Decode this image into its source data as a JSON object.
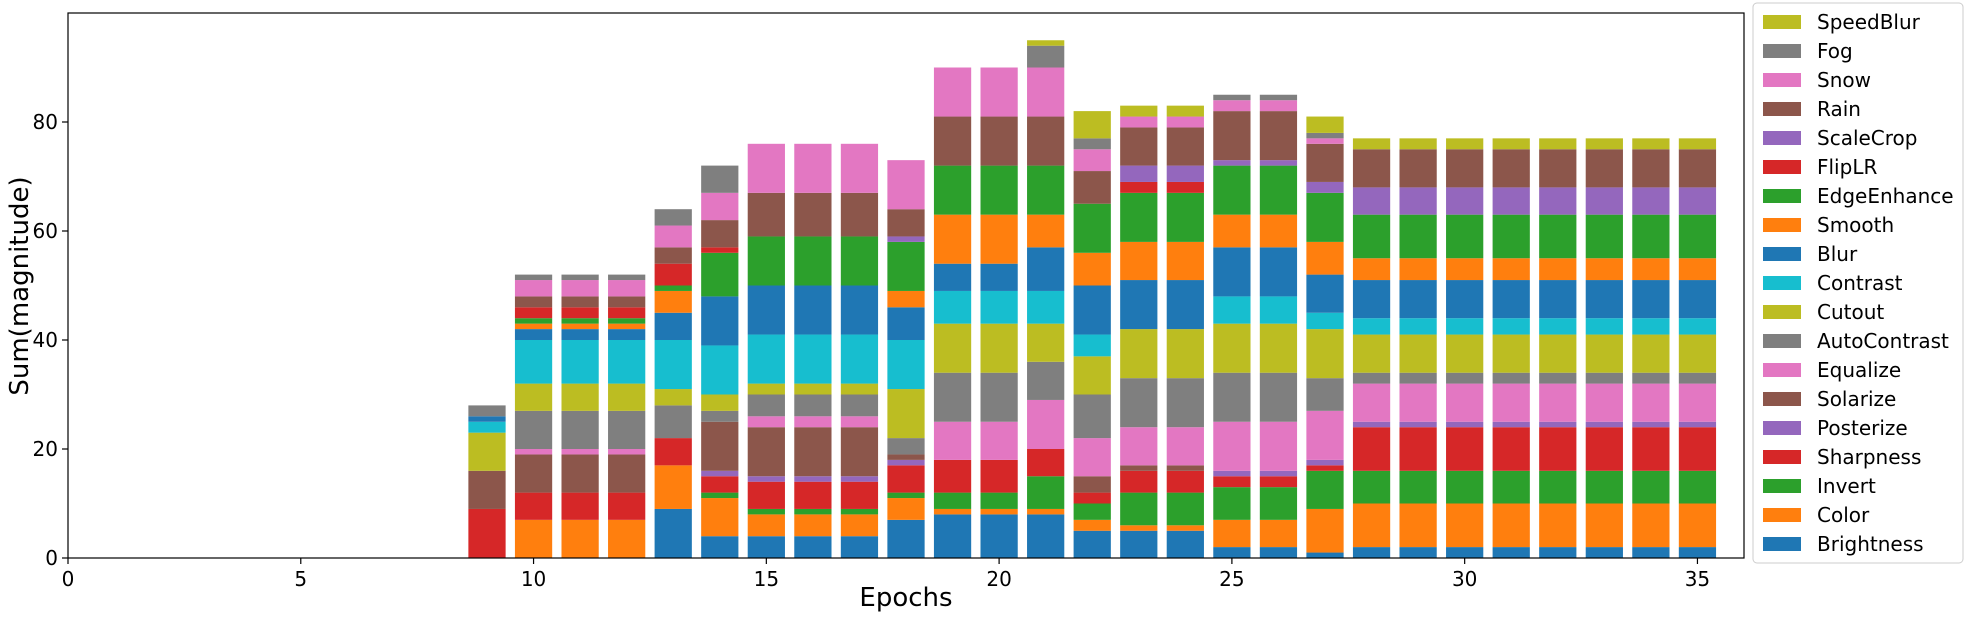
{
  "chart_data": {
    "type": "bar",
    "stacked": true,
    "title": "",
    "xlabel": "Epochs",
    "ylabel": "Sum(magnitude)",
    "xlim": [
      0,
      36
    ],
    "ylim": [
      0,
      100
    ],
    "xticks": [
      0,
      5,
      10,
      15,
      20,
      25,
      30,
      35
    ],
    "yticks": [
      0,
      20,
      40,
      60,
      80
    ],
    "grid": false,
    "legend_position": "outside-right",
    "x": [
      9,
      10,
      11,
      12,
      13,
      14,
      15,
      16,
      17,
      18,
      19,
      20,
      21,
      22,
      23,
      24,
      25,
      26,
      27,
      28,
      29,
      30,
      31,
      32,
      33,
      34,
      35
    ],
    "series": [
      {
        "name": "Brightness",
        "color": "#1f77b4",
        "values": [
          0,
          0,
          0,
          0,
          9,
          4,
          4,
          4,
          4,
          7,
          8,
          8,
          8,
          5,
          5,
          5,
          2,
          2,
          1,
          2,
          2,
          2,
          2,
          2,
          2,
          2,
          2
        ]
      },
      {
        "name": "Color",
        "color": "#ff7f0e",
        "values": [
          0,
          7,
          7,
          7,
          8,
          7,
          4,
          4,
          4,
          4,
          1,
          1,
          1,
          2,
          1,
          1,
          5,
          5,
          8,
          8,
          8,
          8,
          8,
          8,
          8,
          8,
          8
        ]
      },
      {
        "name": "Invert",
        "color": "#2ca02c",
        "values": [
          0,
          0,
          0,
          0,
          0,
          1,
          1,
          1,
          1,
          1,
          3,
          3,
          6,
          3,
          6,
          6,
          6,
          6,
          7,
          6,
          6,
          6,
          6,
          6,
          6,
          6,
          6
        ]
      },
      {
        "name": "Sharpness",
        "color": "#d62728",
        "values": [
          9,
          5,
          5,
          5,
          5,
          3,
          5,
          5,
          5,
          5,
          6,
          6,
          5,
          2,
          4,
          4,
          2,
          2,
          1,
          8,
          8,
          8,
          8,
          8,
          8,
          8,
          8
        ]
      },
      {
        "name": "Posterize",
        "color": "#9467bd",
        "values": [
          0,
          0,
          0,
          0,
          0,
          1,
          1,
          1,
          1,
          1,
          0,
          0,
          0,
          0,
          0,
          0,
          1,
          1,
          1,
          1,
          1,
          1,
          1,
          1,
          1,
          1,
          1
        ]
      },
      {
        "name": "Solarize",
        "color": "#8c564b",
        "values": [
          7,
          7,
          7,
          7,
          0,
          9,
          9,
          9,
          9,
          1,
          0,
          0,
          0,
          3,
          1,
          1,
          0,
          0,
          0,
          0,
          0,
          0,
          0,
          0,
          0,
          0,
          0
        ]
      },
      {
        "name": "Equalize",
        "color": "#e377c2",
        "values": [
          0,
          1,
          1,
          1,
          0,
          0,
          2,
          2,
          2,
          0,
          7,
          7,
          9,
          7,
          7,
          7,
          9,
          9,
          9,
          7,
          7,
          7,
          7,
          7,
          7,
          7,
          7
        ]
      },
      {
        "name": "AutoContrast",
        "color": "#7f7f7f",
        "values": [
          0,
          7,
          7,
          7,
          6,
          2,
          4,
          4,
          4,
          3,
          9,
          9,
          7,
          8,
          9,
          9,
          9,
          9,
          6,
          2,
          2,
          2,
          2,
          2,
          2,
          2,
          2
        ]
      },
      {
        "name": "Cutout",
        "color": "#bcbd22",
        "values": [
          7,
          5,
          5,
          5,
          3,
          3,
          2,
          2,
          2,
          9,
          9,
          9,
          7,
          7,
          9,
          9,
          9,
          9,
          9,
          7,
          7,
          7,
          7,
          7,
          7,
          7,
          7
        ]
      },
      {
        "name": "Contrast",
        "color": "#17becf",
        "values": [
          2,
          8,
          8,
          8,
          9,
          9,
          9,
          9,
          9,
          9,
          6,
          6,
          6,
          4,
          0,
          0,
          5,
          5,
          3,
          3,
          3,
          3,
          3,
          3,
          3,
          3,
          3
        ]
      },
      {
        "name": "Blur",
        "color": "#1f77b4",
        "values": [
          1,
          2,
          2,
          2,
          5,
          9,
          9,
          9,
          9,
          6,
          5,
          5,
          8,
          9,
          9,
          9,
          9,
          9,
          7,
          7,
          7,
          7,
          7,
          7,
          7,
          7,
          7
        ]
      },
      {
        "name": "Smooth",
        "color": "#ff7f0e",
        "values": [
          0,
          1,
          1,
          1,
          4,
          0,
          0,
          0,
          0,
          3,
          9,
          9,
          6,
          6,
          7,
          7,
          6,
          6,
          6,
          4,
          4,
          4,
          4,
          4,
          4,
          4,
          4
        ]
      },
      {
        "name": "EdgeEnhance",
        "color": "#2ca02c",
        "values": [
          0,
          1,
          1,
          1,
          1,
          8,
          9,
          9,
          9,
          9,
          9,
          9,
          9,
          9,
          9,
          9,
          9,
          9,
          9,
          8,
          8,
          8,
          8,
          8,
          8,
          8,
          8
        ]
      },
      {
        "name": "FlipLR",
        "color": "#d62728",
        "values": [
          0,
          2,
          2,
          2,
          4,
          1,
          0,
          0,
          0,
          0,
          0,
          0,
          0,
          0,
          2,
          2,
          0,
          0,
          0,
          0,
          0,
          0,
          0,
          0,
          0,
          0,
          0
        ]
      },
      {
        "name": "ScaleCrop",
        "color": "#9467bd",
        "values": [
          0,
          0,
          0,
          0,
          0,
          0,
          0,
          0,
          0,
          1,
          0,
          0,
          0,
          0,
          3,
          3,
          1,
          1,
          2,
          5,
          5,
          5,
          5,
          5,
          5,
          5,
          5
        ]
      },
      {
        "name": "Rain",
        "color": "#8c564b",
        "values": [
          0,
          2,
          2,
          2,
          3,
          5,
          8,
          8,
          8,
          5,
          9,
          9,
          9,
          6,
          7,
          7,
          9,
          9,
          7,
          7,
          7,
          7,
          7,
          7,
          7,
          7,
          7
        ]
      },
      {
        "name": "Snow",
        "color": "#e377c2",
        "values": [
          0,
          3,
          3,
          3,
          4,
          5,
          9,
          9,
          9,
          9,
          9,
          9,
          9,
          4,
          2,
          2,
          2,
          2,
          1,
          0,
          0,
          0,
          0,
          0,
          0,
          0,
          0
        ]
      },
      {
        "name": "Fog",
        "color": "#7f7f7f",
        "values": [
          2,
          1,
          1,
          1,
          3,
          5,
          0,
          0,
          0,
          0,
          0,
          0,
          4,
          2,
          0,
          0,
          1,
          1,
          1,
          0,
          0,
          0,
          0,
          0,
          0,
          0,
          0
        ]
      },
      {
        "name": "SpeedBlur",
        "color": "#bcbd22",
        "values": [
          0,
          0,
          0,
          0,
          0,
          0,
          0,
          0,
          0,
          0,
          0,
          0,
          1,
          5,
          2,
          2,
          0,
          0,
          3,
          2,
          2,
          2,
          2,
          2,
          2,
          2,
          2
        ]
      }
    ]
  }
}
